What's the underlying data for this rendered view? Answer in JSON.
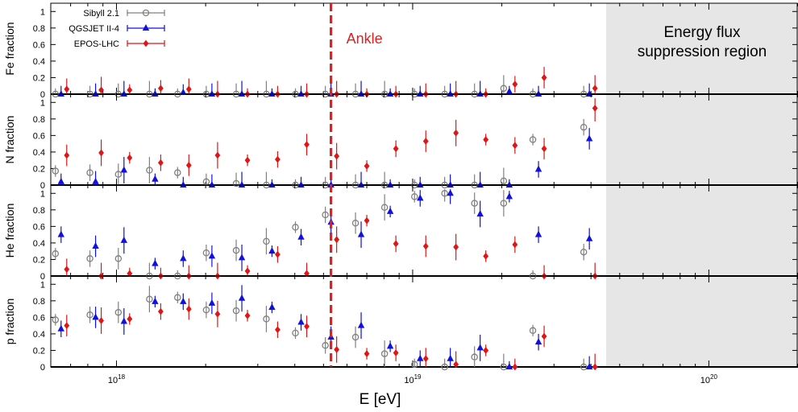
{
  "colors": {
    "sibyll": "#808080",
    "qgsjet": "#1010e0",
    "epos": "#e01515",
    "ankle": "#e02020",
    "suppression_band": "#e6e6e6"
  },
  "legend": {
    "placement": "top-left of top panel",
    "entries": [
      "Sibyll 2.1",
      "QGSJET II-4",
      "EPOS-LHC"
    ]
  },
  "annotations": {
    "ankle_label": "Ankle",
    "ankle_energy": 5.3e+18,
    "suppression_label_line1": "Energy flux",
    "suppression_label_line2": "suppression region",
    "suppression_start": 4.5e+19
  },
  "xaxis": {
    "label": "E [eV]",
    "scale": "log",
    "range": [
      6e+17,
      2e+20
    ],
    "tick_labels": [
      {
        "base": "10",
        "exp": "18",
        "value": 1e+18
      },
      {
        "base": "10",
        "exp": "19",
        "value": 1e+19
      },
      {
        "base": "10",
        "exp": "20",
        "value": 1e+20
      }
    ]
  },
  "chart_data": {
    "type": "scatter",
    "xlabel": "E [eV]",
    "x_scale": "log",
    "ylim": [
      0,
      1.1
    ],
    "yticks": [
      "0",
      "0.2",
      "0.4",
      "0.6",
      "0.8",
      "1"
    ],
    "x_energies": [
      6.5e+17,
      8.5e+17,
      1.06e+18,
      1.35e+18,
      1.68e+18,
      2.1e+18,
      2.65e+18,
      3.35e+18,
      4.2e+18,
      5.3e+18,
      6.7e+18,
      8.4e+18,
      1.06e+19,
      1.34e+19,
      1.69e+19,
      2.12e+19,
      2.66e+19,
      3.95e+19
    ],
    "panels": [
      {
        "ylabel": "Fe fraction",
        "series": [
          {
            "name": "Sibyll 2.1",
            "values": [
              0.0,
              0.0,
              0.0,
              0.0,
              0.0,
              0.0,
              0.0,
              0.0,
              0.0,
              0.0,
              0.0,
              0.0,
              0.0,
              0.0,
              0.0,
              0.07,
              0.0,
              0.0
            ]
          },
          {
            "name": "QGSJET II-4",
            "values": [
              0.0,
              0.0,
              0.0,
              0.0,
              0.02,
              0.0,
              0.0,
              0.0,
              0.0,
              0.0,
              0.0,
              0.0,
              0.0,
              0.0,
              0.0,
              0.03,
              0.0,
              0.0
            ]
          },
          {
            "name": "EPOS-LHC",
            "values": [
              0.06,
              0.05,
              0.05,
              0.07,
              0.06,
              0.0,
              0.0,
              0.0,
              0.0,
              0.0,
              0.0,
              0.0,
              0.0,
              0.0,
              0.0,
              0.12,
              0.2,
              0.07
            ]
          }
        ]
      },
      {
        "ylabel": "N fraction",
        "series": [
          {
            "name": "Sibyll 2.1",
            "values": [
              0.17,
              0.15,
              0.13,
              0.18,
              0.15,
              0.04,
              0.02,
              0.0,
              0.0,
              0.0,
              0.0,
              0.0,
              0.0,
              0.0,
              0.0,
              0.05,
              0.55,
              0.7
            ]
          },
          {
            "name": "QGSJET II-4",
            "values": [
              0.04,
              0.04,
              0.18,
              0.07,
              0.0,
              0.0,
              0.0,
              0.0,
              0.0,
              0.0,
              0.0,
              0.0,
              0.0,
              0.0,
              0.0,
              0.0,
              0.19,
              0.56
            ]
          },
          {
            "name": "EPOS-LHC",
            "values": [
              0.36,
              0.39,
              0.33,
              0.27,
              0.24,
              0.36,
              0.3,
              0.31,
              0.49,
              0.35,
              0.23,
              0.44,
              0.53,
              0.63,
              0.55,
              0.48,
              0.44,
              0.93
            ]
          }
        ]
      },
      {
        "ylabel": "He fraction",
        "series": [
          {
            "name": "Sibyll 2.1",
            "values": [
              0.27,
              0.21,
              0.21,
              0.0,
              0.0,
              0.28,
              0.31,
              0.42,
              0.59,
              0.74,
              0.64,
              0.83,
              0.96,
              1.0,
              0.88,
              0.88,
              0.0,
              0.29
            ]
          },
          {
            "name": "QGSJET II-4",
            "values": [
              0.5,
              0.36,
              0.43,
              0.15,
              0.21,
              0.24,
              0.22,
              0.3,
              0.47,
              0.65,
              0.5,
              0.78,
              0.94,
              1.0,
              0.75,
              0.96,
              0.5,
              0.45
            ]
          },
          {
            "name": "EPOS-LHC",
            "values": [
              0.08,
              0.0,
              0.03,
              0.0,
              0.0,
              0.0,
              0.06,
              0.26,
              0.03,
              0.44,
              0.67,
              0.39,
              0.36,
              0.35,
              0.24,
              0.38,
              0.0,
              0.0
            ]
          }
        ]
      },
      {
        "ylabel": "p fraction",
        "series": [
          {
            "name": "Sibyll 2.1",
            "values": [
              0.57,
              0.63,
              0.66,
              0.82,
              0.84,
              0.69,
              0.68,
              0.58,
              0.41,
              0.26,
              0.36,
              0.16,
              0.03,
              0.0,
              0.12,
              0.0,
              0.44,
              0.0
            ]
          },
          {
            "name": "QGSJET II-4",
            "values": [
              0.46,
              0.6,
              0.55,
              0.79,
              0.79,
              0.77,
              0.83,
              0.72,
              0.54,
              0.36,
              0.5,
              0.25,
              0.1,
              0.1,
              0.23,
              0.0,
              0.3,
              0.0
            ]
          },
          {
            "name": "EPOS-LHC",
            "values": [
              0.5,
              0.56,
              0.58,
              0.67,
              0.7,
              0.64,
              0.62,
              0.45,
              0.49,
              0.21,
              0.16,
              0.17,
              0.1,
              0.03,
              0.2,
              0.0,
              0.37,
              0.0
            ]
          }
        ]
      }
    ]
  }
}
